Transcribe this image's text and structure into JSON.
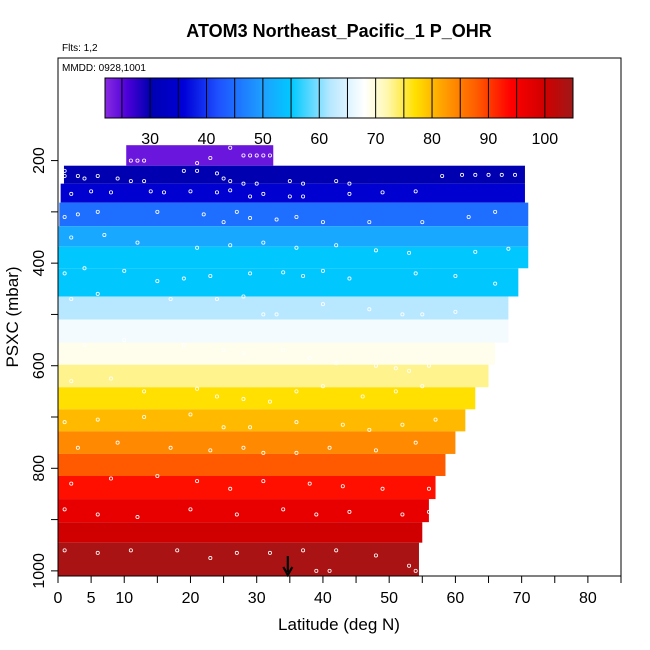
{
  "title": "ATOM3 Northeast_Pacific_1 P_OHR",
  "flights_note": "Flts: 1,2",
  "dates_note": "MMDD: 0928,1001",
  "chart_data": {
    "type": "heatmap",
    "title": "ATOM3 Northeast_Pacific_1 P_OHR",
    "xlabel": "Latitude (deg N)",
    "ylabel": "PSXC (mbar)",
    "xlim": [
      0,
      85
    ],
    "ylim": [
      1010,
      0
    ],
    "x_ticks": [
      0,
      5,
      10,
      20,
      30,
      40,
      50,
      60,
      70,
      80
    ],
    "x_minor_ticks": [
      15,
      25,
      35,
      45,
      55,
      65,
      75,
      85
    ],
    "y_ticks": [
      200,
      400,
      600,
      800,
      1000
    ],
    "y_minor_ticks": [
      300,
      500,
      700,
      900
    ],
    "colorbar": {
      "min": 22,
      "max": 105,
      "ticks": [
        30,
        40,
        50,
        60,
        70,
        80,
        90,
        100
      ],
      "stops": [
        {
          "v": 22,
          "c": "#8a2be2"
        },
        {
          "v": 26,
          "c": "#4b00d8"
        },
        {
          "v": 30,
          "c": "#0000b0"
        },
        {
          "v": 36,
          "c": "#0000d8"
        },
        {
          "v": 42,
          "c": "#1e50ff"
        },
        {
          "v": 50,
          "c": "#1ea0ff"
        },
        {
          "v": 55,
          "c": "#00c8ff"
        },
        {
          "v": 62,
          "c": "#b8e8ff"
        },
        {
          "v": 68,
          "c": "#ffffff"
        },
        {
          "v": 72,
          "c": "#fff8b0"
        },
        {
          "v": 77,
          "c": "#ffe000"
        },
        {
          "v": 82,
          "c": "#ffa000"
        },
        {
          "v": 88,
          "c": "#ff5a00"
        },
        {
          "v": 94,
          "c": "#ff0000"
        },
        {
          "v": 100,
          "c": "#d00000"
        },
        {
          "v": 105,
          "c": "#a01818"
        }
      ]
    },
    "rows": [
      {
        "p0": 170,
        "p1": 210,
        "x0": 10.3,
        "x1": 32.5,
        "value": 24
      },
      {
        "p0": 210,
        "p1": 245,
        "x0": 0.9,
        "x1": 70.5,
        "value": 30
      },
      {
        "p0": 245,
        "p1": 282,
        "x0": 0.4,
        "x1": 70.5,
        "value": 35
      },
      {
        "p0": 282,
        "p1": 328,
        "x0": 0.2,
        "x1": 71.0,
        "value": 45
      },
      {
        "p0": 328,
        "p1": 368,
        "x0": 0.1,
        "x1": 71.0,
        "value": 51
      },
      {
        "p0": 368,
        "p1": 410,
        "x0": 0.0,
        "x1": 71.0,
        "value": 55
      },
      {
        "p0": 410,
        "p1": 465,
        "x0": 0.0,
        "x1": 69.5,
        "value": 55
      },
      {
        "p0": 465,
        "p1": 510,
        "x0": 0.0,
        "x1": 68.0,
        "value": 62
      },
      {
        "p0": 510,
        "p1": 555,
        "x0": 0.0,
        "x1": 68.0,
        "value": 67
      },
      {
        "p0": 555,
        "p1": 598,
        "x0": 0.0,
        "x1": 66.0,
        "value": 69
      },
      {
        "p0": 598,
        "p1": 642,
        "x0": 0.0,
        "x1": 65.0,
        "value": 73
      },
      {
        "p0": 642,
        "p1": 685,
        "x0": 0.0,
        "x1": 63.0,
        "value": 77
      },
      {
        "p0": 685,
        "p1": 728,
        "x0": 0.0,
        "x1": 61.5,
        "value": 80
      },
      {
        "p0": 728,
        "p1": 772,
        "x0": 0.0,
        "x1": 60.0,
        "value": 84
      },
      {
        "p0": 772,
        "p1": 815,
        "x0": 0.0,
        "x1": 58.5,
        "value": 88
      },
      {
        "p0": 815,
        "p1": 860,
        "x0": 0.0,
        "x1": 57.0,
        "value": 93
      },
      {
        "p0": 860,
        "p1": 905,
        "x0": 0.0,
        "x1": 56.0,
        "value": 97
      },
      {
        "p0": 905,
        "p1": 945,
        "x0": 0.0,
        "x1": 55.0,
        "value": 100
      },
      {
        "p0": 945,
        "p1": 1010,
        "x0": 0.0,
        "x1": 54.5,
        "value": 104
      }
    ],
    "arrow_latitude": 34.7,
    "samples": [
      [
        11,
        200
      ],
      [
        12,
        200
      ],
      [
        13,
        200
      ],
      [
        21,
        205
      ],
      [
        23,
        195
      ],
      [
        28,
        190
      ],
      [
        29,
        190
      ],
      [
        30,
        190
      ],
      [
        31,
        190
      ],
      [
        32,
        190
      ],
      [
        33,
        190
      ],
      [
        34,
        190
      ],
      [
        26,
        175
      ],
      [
        1,
        220
      ],
      [
        1,
        230
      ],
      [
        3,
        230
      ],
      [
        4,
        235
      ],
      [
        6,
        230
      ],
      [
        9,
        235
      ],
      [
        11,
        240
      ],
      [
        13,
        240
      ],
      [
        19,
        220
      ],
      [
        21,
        220
      ],
      [
        24,
        225
      ],
      [
        25,
        235
      ],
      [
        26,
        240
      ],
      [
        28,
        245
      ],
      [
        30,
        245
      ],
      [
        35,
        240
      ],
      [
        37,
        245
      ],
      [
        42,
        240
      ],
      [
        44,
        245
      ],
      [
        58,
        230
      ],
      [
        61,
        228
      ],
      [
        63,
        228
      ],
      [
        65,
        228
      ],
      [
        67,
        228
      ],
      [
        69,
        228
      ],
      [
        71,
        228
      ],
      [
        2,
        265
      ],
      [
        5,
        260
      ],
      [
        8,
        262
      ],
      [
        14,
        260
      ],
      [
        16,
        262
      ],
      [
        20,
        260
      ],
      [
        24,
        262
      ],
      [
        26,
        258
      ],
      [
        29,
        270
      ],
      [
        31,
        265
      ],
      [
        35,
        270
      ],
      [
        37,
        270
      ],
      [
        44,
        265
      ],
      [
        49,
        262
      ],
      [
        54,
        260
      ],
      [
        1,
        310
      ],
      [
        3,
        305
      ],
      [
        6,
        300
      ],
      [
        15,
        300
      ],
      [
        22,
        305
      ],
      [
        25,
        320
      ],
      [
        27,
        300
      ],
      [
        29,
        312
      ],
      [
        33,
        315
      ],
      [
        36,
        310
      ],
      [
        40,
        320
      ],
      [
        47,
        320
      ],
      [
        55,
        320
      ],
      [
        62,
        310
      ],
      [
        66,
        300
      ],
      [
        2,
        350
      ],
      [
        7,
        345
      ],
      [
        12,
        360
      ],
      [
        21,
        370
      ],
      [
        26,
        365
      ],
      [
        31,
        360
      ],
      [
        36,
        370
      ],
      [
        42,
        365
      ],
      [
        48,
        375
      ],
      [
        53,
        380
      ],
      [
        63,
        378
      ],
      [
        68,
        372
      ],
      [
        1,
        420
      ],
      [
        4,
        410
      ],
      [
        10,
        415
      ],
      [
        15,
        435
      ],
      [
        19,
        430
      ],
      [
        23,
        425
      ],
      [
        29,
        420
      ],
      [
        34,
        418
      ],
      [
        37,
        425
      ],
      [
        40,
        415
      ],
      [
        44,
        430
      ],
      [
        54,
        420
      ],
      [
        60,
        425
      ],
      [
        66,
        440
      ],
      [
        2,
        470
      ],
      [
        6,
        460
      ],
      [
        17,
        470
      ],
      [
        24,
        470
      ],
      [
        28,
        465
      ],
      [
        31,
        500
      ],
      [
        33,
        500
      ],
      [
        40,
        480
      ],
      [
        47,
        490
      ],
      [
        52,
        500
      ],
      [
        55,
        500
      ],
      [
        60,
        495
      ],
      [
        4,
        560
      ],
      [
        10,
        550
      ],
      [
        19,
        560
      ],
      [
        25,
        570
      ],
      [
        28,
        575
      ],
      [
        34,
        570
      ],
      [
        38,
        585
      ],
      [
        42,
        595
      ],
      [
        48,
        600
      ],
      [
        51,
        605
      ],
      [
        53,
        610
      ],
      [
        56,
        600
      ],
      [
        2,
        630
      ],
      [
        8,
        625
      ],
      [
        13,
        650
      ],
      [
        21,
        645
      ],
      [
        24,
        660
      ],
      [
        28,
        665
      ],
      [
        32,
        670
      ],
      [
        36,
        650
      ],
      [
        40,
        640
      ],
      [
        46,
        660
      ],
      [
        51,
        650
      ],
      [
        55,
        640
      ],
      [
        1,
        710
      ],
      [
        6,
        705
      ],
      [
        13,
        700
      ],
      [
        20,
        695
      ],
      [
        25,
        720
      ],
      [
        29,
        720
      ],
      [
        36,
        710
      ],
      [
        43,
        715
      ],
      [
        47,
        725
      ],
      [
        52,
        715
      ],
      [
        57,
        705
      ],
      [
        3,
        760
      ],
      [
        9,
        750
      ],
      [
        17,
        760
      ],
      [
        23,
        765
      ],
      [
        28,
        760
      ],
      [
        31,
        770
      ],
      [
        36,
        770
      ],
      [
        41,
        760
      ],
      [
        48,
        765
      ],
      [
        54,
        750
      ],
      [
        2,
        830
      ],
      [
        8,
        820
      ],
      [
        15,
        815
      ],
      [
        21,
        825
      ],
      [
        26,
        840
      ],
      [
        31,
        825
      ],
      [
        38,
        830
      ],
      [
        43,
        835
      ],
      [
        49,
        840
      ],
      [
        56,
        840
      ],
      [
        1,
        880
      ],
      [
        6,
        890
      ],
      [
        12,
        895
      ],
      [
        20,
        880
      ],
      [
        27,
        890
      ],
      [
        34,
        880
      ],
      [
        39,
        890
      ],
      [
        44,
        885
      ],
      [
        52,
        890
      ],
      [
        56,
        885
      ],
      [
        1,
        960
      ],
      [
        6,
        965
      ],
      [
        11,
        960
      ],
      [
        18,
        960
      ],
      [
        23,
        975
      ],
      [
        27,
        965
      ],
      [
        32,
        965
      ],
      [
        37,
        960
      ],
      [
        42,
        960
      ],
      [
        48,
        970
      ],
      [
        53,
        990
      ],
      [
        54,
        1000
      ],
      [
        41,
        1000
      ],
      [
        39,
        1000
      ]
    ]
  }
}
